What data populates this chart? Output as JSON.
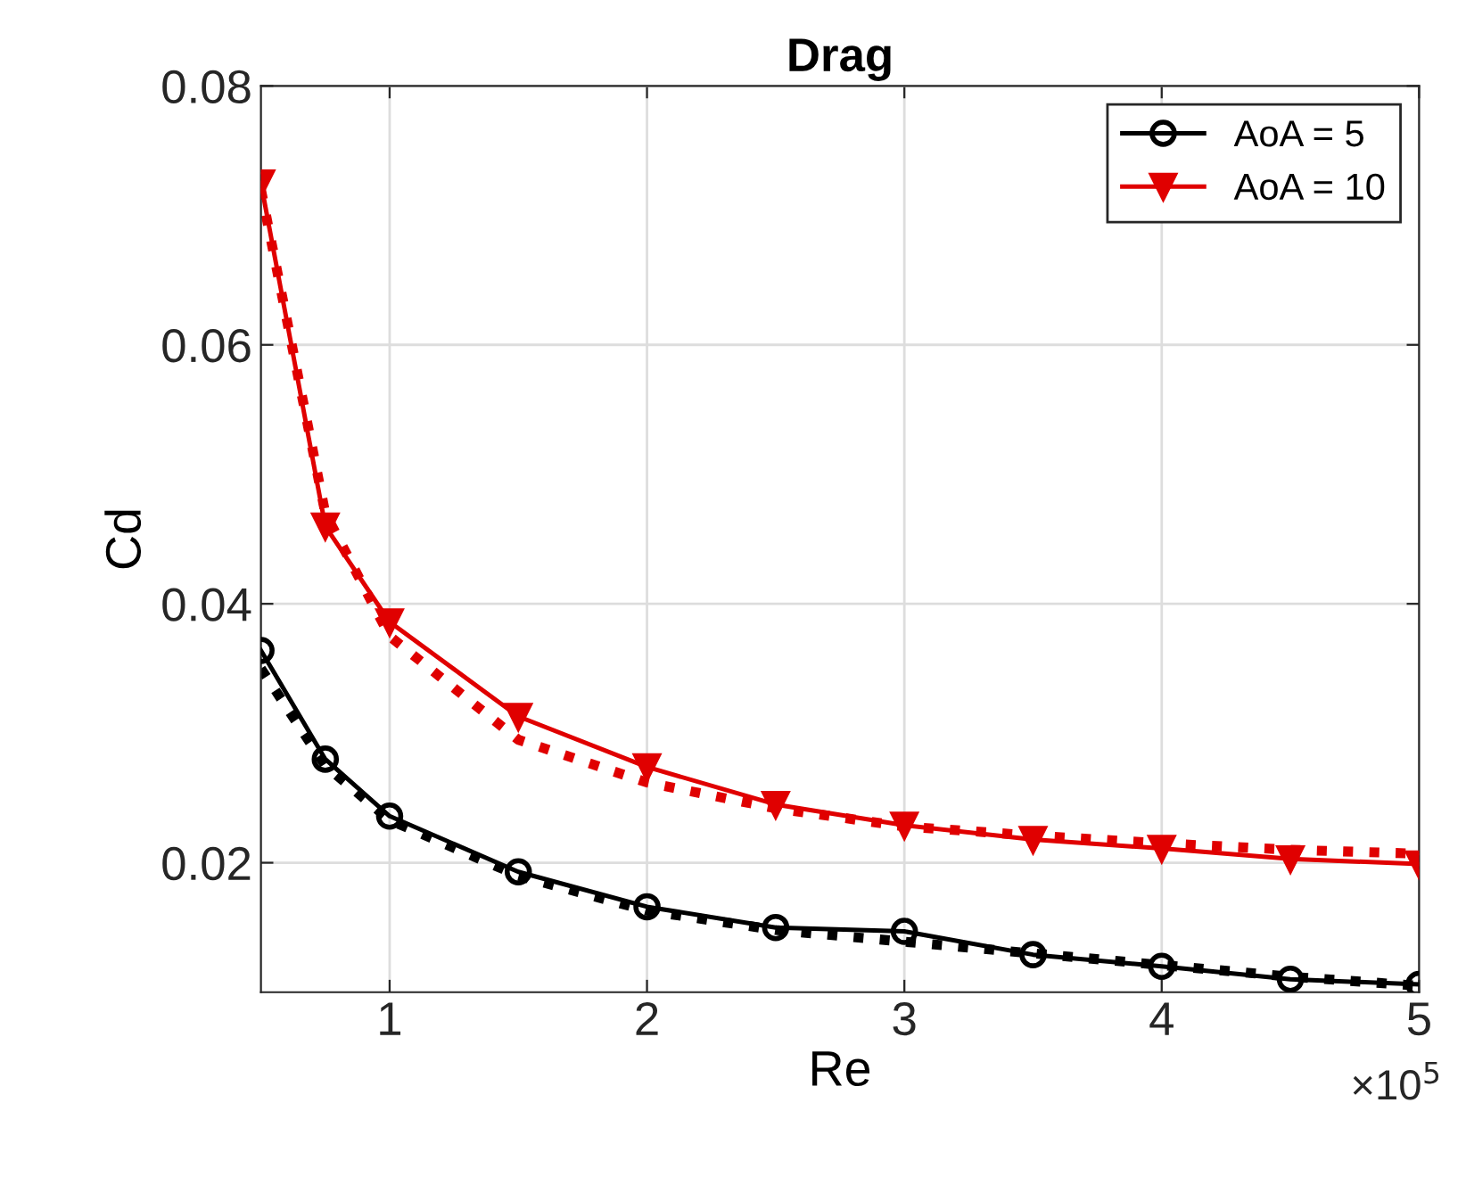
{
  "chart_data": {
    "type": "line",
    "title": "Drag",
    "xlabel": "Re",
    "ylabel": "Cd",
    "annotations": [
      "×10$^{5}$"
    ],
    "x": [
      0.5,
      0.75,
      1,
      1.5,
      2,
      2.5,
      3,
      3.5,
      4,
      4.5,
      5
    ],
    "series": [
      {
        "name": "AoA = 5",
        "color": "#000000",
        "marker": "circle",
        "line_style": "solid",
        "values": [
          0.0364,
          0.028,
          0.0236,
          0.0193,
          0.0166,
          0.015,
          0.0147,
          0.0129,
          0.012,
          0.011,
          0.0106
        ]
      },
      {
        "name": "AoA = 10",
        "color": "#e00000",
        "marker": "triangle",
        "line_style": "solid",
        "values": [
          0.0725,
          0.046,
          0.0386,
          0.0313,
          0.0274,
          0.0245,
          0.0229,
          0.0218,
          0.0211,
          0.0203,
          0.0199
        ]
      },
      {
        "color": "#000000",
        "marker": "none",
        "line_style": "dotted",
        "values": [
          0.035,
          0.0275,
          0.0233,
          0.019,
          0.0163,
          0.0148,
          0.0139,
          0.013,
          0.0121,
          0.0112,
          0.0105
        ]
      },
      {
        "color": "#e00000",
        "marker": "none",
        "line_style": "dotted",
        "values": [
          0.072,
          0.047,
          0.0375,
          0.0295,
          0.0262,
          0.0242,
          0.0228,
          0.0221,
          0.0215,
          0.021,
          0.0207
        ]
      }
    ],
    "xlim": [
      0.5,
      5
    ],
    "ylim": [
      0.01,
      0.08
    ],
    "xticks": [
      1,
      2,
      3,
      4,
      5
    ],
    "yticks": [
      0.02,
      0.04,
      0.06,
      0.08
    ],
    "grid": true,
    "legend": "top right"
  }
}
